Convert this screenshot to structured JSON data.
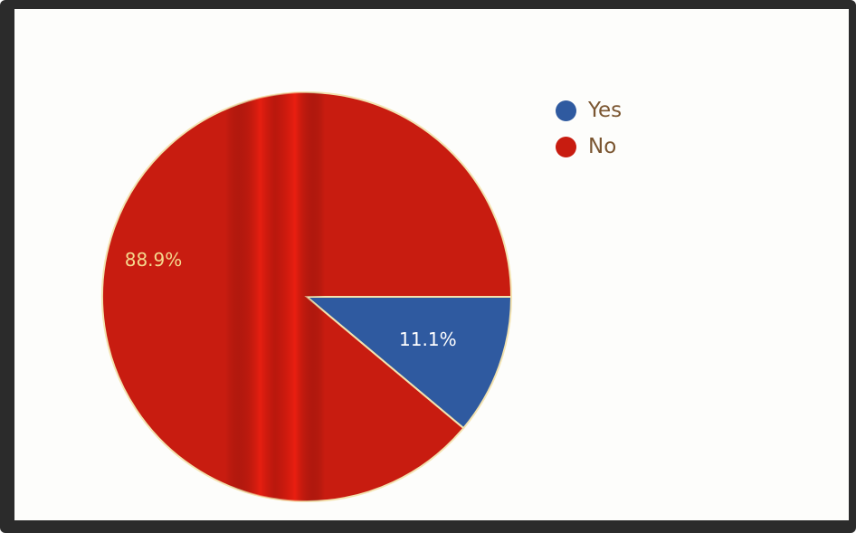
{
  "chart_data": {
    "type": "pie",
    "title": "",
    "categories": [
      "Yes",
      "No"
    ],
    "values": [
      11.1,
      88.9
    ],
    "labels": [
      "11.1%",
      "88.9%"
    ],
    "colors": [
      "#2f5aa0",
      "#c81c10"
    ],
    "label_colors": [
      "#ffffff",
      "#f5d98e"
    ],
    "legend_position": "top-right",
    "start_angle_deg": 0,
    "direction": "clockwise"
  }
}
